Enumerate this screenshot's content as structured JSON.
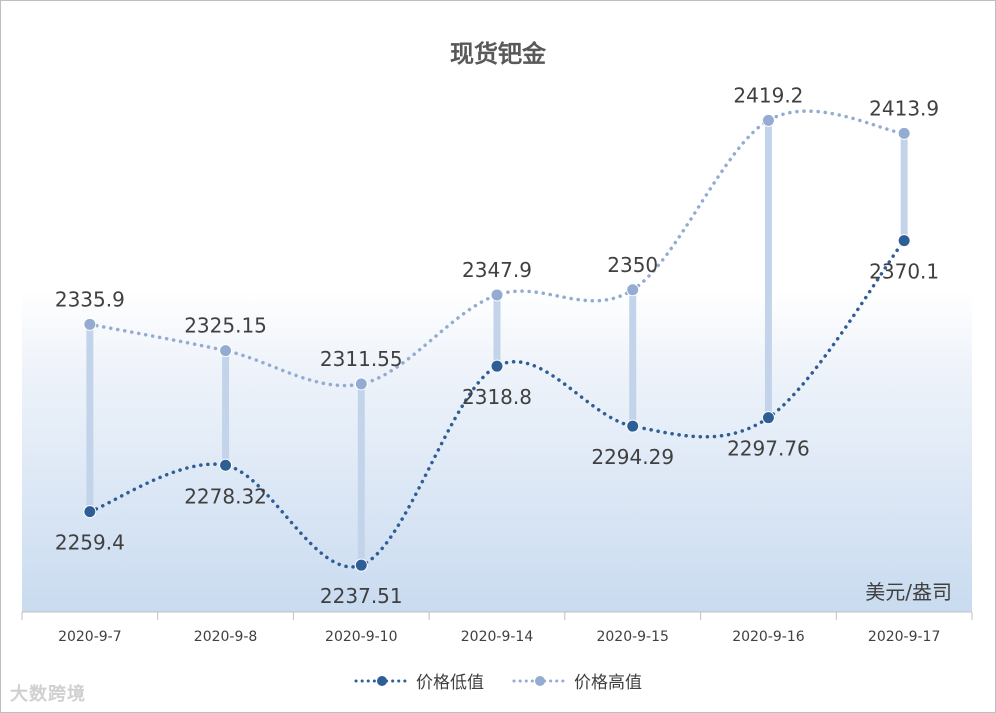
{
  "chart_data": {
    "type": "line",
    "title": "现货钯金",
    "unit_label": "美元/盎司",
    "categories": [
      "2020-9-7",
      "2020-9-8",
      "2020-9-10",
      "2020-9-14",
      "2020-9-15",
      "2020-9-16",
      "2020-9-17"
    ],
    "series": [
      {
        "name": "价格低值",
        "values": [
          2259.4,
          2278.32,
          2237.51,
          2318.8,
          2294.29,
          2297.76,
          2370.1
        ],
        "labels": [
          "2259.4",
          "2278.32",
          "2237.51",
          "2318.8",
          "2294.29",
          "2297.76",
          "2370.1"
        ],
        "color": "#2e5e96",
        "line_style": "dotted",
        "smooth": true
      },
      {
        "name": "价格高值",
        "values": [
          2335.9,
          2325.15,
          2311.55,
          2347.9,
          2350,
          2419.2,
          2413.9
        ],
        "labels": [
          "2335.9",
          "2325.15",
          "2311.55",
          "2347.9",
          "2350",
          "2419.2",
          "2413.9"
        ],
        "color": "#94acd2",
        "line_style": "dotted",
        "smooth": true
      }
    ],
    "high_low_lines": true,
    "high_low_color": "#c3d4ea",
    "legend_position": "bottom",
    "grid": false
  },
  "watermark": "大数跨境"
}
